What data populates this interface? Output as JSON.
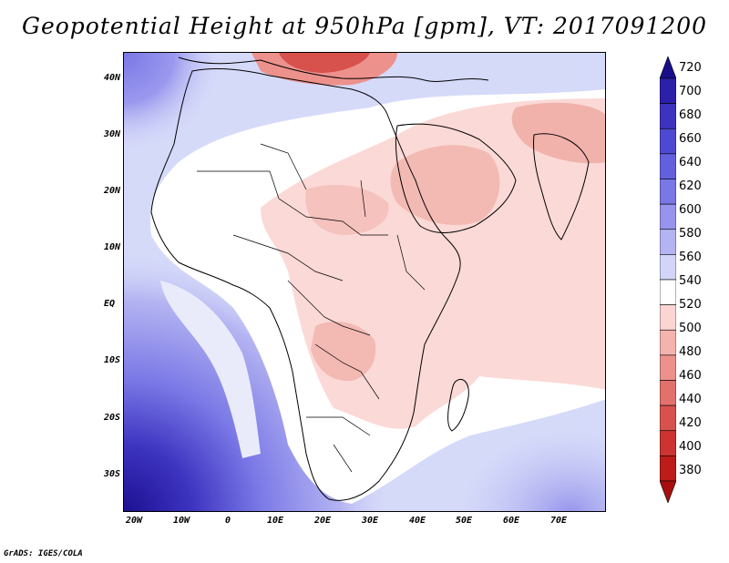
{
  "title": "Geopotential Height at 950hPa [gpm], VT: 2017091200",
  "footer": "GrADS: IGES/COLA",
  "map": {
    "region": "Africa and Arabian Peninsula",
    "lat_labels": [
      "40N",
      "30N",
      "20N",
      "10N",
      "EQ",
      "10S",
      "20S",
      "30S"
    ],
    "lon_labels": [
      "20W",
      "10W",
      "0",
      "10E",
      "20E",
      "30E",
      "40E",
      "50E",
      "60E",
      "70E"
    ]
  },
  "colorbar": {
    "levels": [
      "720",
      "700",
      "680",
      "660",
      "640",
      "620",
      "600",
      "580",
      "560",
      "540",
      "520",
      "500",
      "480",
      "460",
      "440",
      "420",
      "400",
      "380"
    ],
    "colors": [
      "#1a0d8c",
      "#2c1fa8",
      "#3d33c0",
      "#4e49d2",
      "#6360de",
      "#7a78e6",
      "#9694ec",
      "#b4b4f2",
      "#d3d5f8",
      "#ffffff",
      "#fbd5d2",
      "#f5b3ae",
      "#ec918b",
      "#e2716b",
      "#d7524d",
      "#cb3430",
      "#bd1c1a",
      "#a80e0e"
    ]
  }
}
